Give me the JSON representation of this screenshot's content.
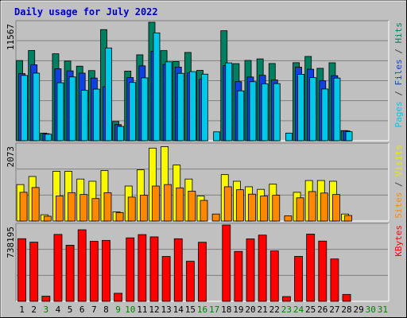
{
  "chart_data": {
    "type": "bar",
    "title": "Daily usage for July 2022",
    "categories": [
      "1",
      "2",
      "3",
      "4",
      "5",
      "6",
      "7",
      "8",
      "9",
      "10",
      "11",
      "12",
      "13",
      "14",
      "15",
      "16",
      "17",
      "18",
      "19",
      "20",
      "21",
      "22",
      "23",
      "24",
      "25",
      "26",
      "27",
      "28",
      "29",
      "30",
      "31"
    ],
    "weekend_days": [
      "3",
      "9",
      "10",
      "16",
      "17",
      "23",
      "24",
      "30",
      "31"
    ],
    "panels": [
      {
        "id": "hits",
        "max_label": "11567",
        "ymax": 11567,
        "legend": [
          {
            "text": "Pages",
            "color": "#00c8e8"
          },
          {
            "text": " / ",
            "color": "#404040"
          },
          {
            "text": "Files",
            "color": "#1040e0"
          },
          {
            "text": " / ",
            "color": "#404040"
          },
          {
            "text": "Hits",
            "color": "#008060"
          }
        ],
        "series": [
          {
            "name": "Hits",
            "color": "#008060",
            "values": [
              7830,
              8810,
              740,
              8490,
              7780,
              7280,
              6850,
              10850,
              1880,
              6800,
              8390,
              11567,
              8800,
              7730,
              8620,
              6870,
              0,
              10740,
              7530,
              7840,
              7990,
              7540,
              0,
              7620,
              8230,
              7070,
              7610,
              990,
              0,
              0,
              0
            ]
          },
          {
            "name": "Files",
            "color": "#1040e0",
            "values": [
              6550,
              7410,
              690,
              7030,
              6820,
              6600,
              6120,
              5270,
              1570,
              6170,
              7310,
              8730,
              7450,
              7190,
              6620,
              6010,
              0,
              7330,
              5770,
              6220,
              6390,
              5930,
              0,
              7180,
              6980,
              5850,
              6350,
              960,
              0,
              0,
              0
            ]
          },
          {
            "name": "Pages",
            "color": "#00c8e8",
            "values": [
              6380,
              6600,
              640,
              5660,
              6230,
              4920,
              5040,
              9060,
              1400,
              5690,
              6140,
              10530,
              7700,
              6580,
              6750,
              6500,
              870,
              7600,
              4870,
              5760,
              5560,
              5580,
              740,
              6490,
              6160,
              5050,
              6120,
              880,
              0,
              0,
              0
            ]
          }
        ]
      },
      {
        "id": "visits",
        "max_label": "2073",
        "ymax": 2073,
        "legend": [
          {
            "text": "Sites",
            "color": "#ff8800"
          },
          {
            "text": " / ",
            "color": "#404040"
          },
          {
            "text": "Visits",
            "color": "#e8e800"
          }
        ],
        "series": [
          {
            "name": "Visits",
            "color": "#f8f800",
            "values": [
              990,
              1210,
              170,
              1350,
              1350,
              1140,
              1080,
              1370,
              250,
              950,
              1390,
              1980,
              2020,
              1520,
              1140,
              680,
              0,
              1260,
              1080,
              930,
              860,
              1000,
              0,
              780,
              1100,
              1100,
              1080,
              190,
              0,
              0,
              0
            ]
          },
          {
            "name": "Sites",
            "color": "#ff8800",
            "values": [
              780,
              910,
              130,
              680,
              770,
              720,
              610,
              770,
              230,
              650,
              700,
              950,
              990,
              900,
              810,
              560,
              190,
              930,
              850,
              730,
              680,
              700,
              140,
              630,
              800,
              760,
              720,
              150,
              0,
              0,
              0
            ]
          }
        ]
      },
      {
        "id": "kbytes",
        "max_label": "738195",
        "ymax": 738195,
        "legend": [
          {
            "text": "KBytes",
            "color": "#ff0000"
          }
        ],
        "series": [
          {
            "name": "KBytes",
            "color": "#ff0000",
            "values": [
              605600,
              572200,
              49800,
              647200,
              542800,
              692100,
              580100,
              589400,
              77800,
              613700,
              645400,
              623300,
              434200,
              605200,
              387600,
              571400,
              0,
              738195,
              482400,
              603700,
              640500,
              487200,
              45800,
              434600,
              650200,
              582700,
              409700,
              66800,
              0,
              0,
              0
            ]
          }
        ]
      }
    ]
  }
}
